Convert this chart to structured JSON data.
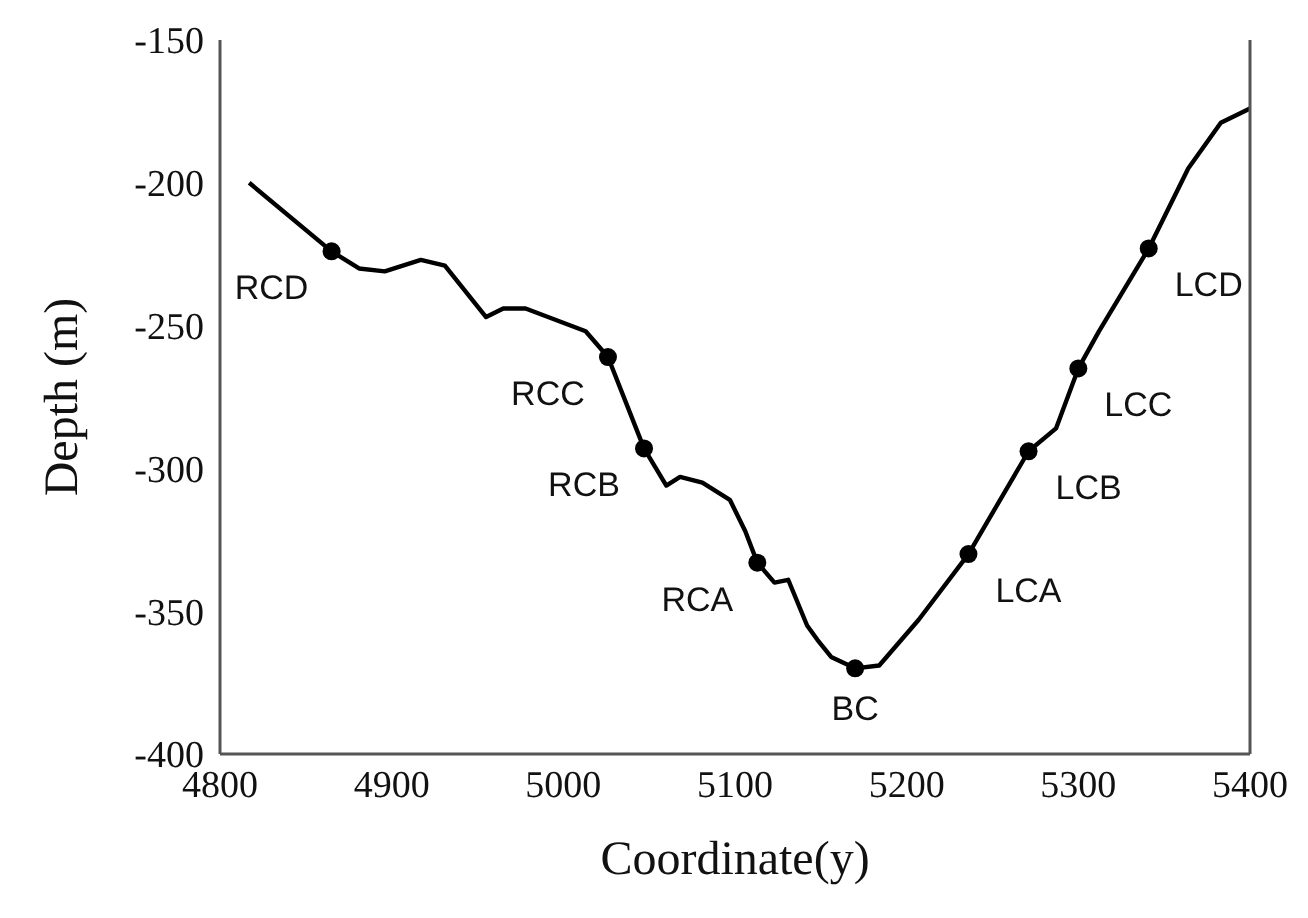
{
  "chart_data": {
    "type": "line",
    "xlabel": "Coordinate(y)",
    "ylabel": "Depth (m)",
    "xlim": [
      4800,
      5400
    ],
    "xticks": [
      4800,
      4900,
      5000,
      5100,
      5200,
      5300,
      5400
    ],
    "ylim": [
      -400,
      -150
    ],
    "yticks": [
      -400,
      -350,
      -300,
      -250,
      -200,
      -150
    ],
    "grid": false,
    "marker": "none",
    "line_style": "solid",
    "series": [
      {
        "color": "#000000",
        "x": [
          4817,
          4865,
          4881,
          4896,
          4917,
          4931,
          4955,
          4965,
          4978,
          5013,
          5026,
          5047,
          5060,
          5068,
          5081,
          5097,
          5106,
          5113,
          5123,
          5131,
          5142,
          5148,
          5156,
          5170,
          5184,
          5207,
          5236,
          5271,
          5287,
          5300,
          5312,
          5341,
          5364,
          5383,
          5400
        ],
        "values": [
          -200,
          -224,
          -230,
          -231,
          -227,
          -229,
          -247,
          -244,
          -244,
          -252,
          -261,
          -293,
          -306,
          -303,
          -305,
          -311,
          -322,
          -333,
          -340,
          -339,
          -355,
          -360,
          -366,
          -370,
          -369,
          -353,
          -330,
          -294,
          -286,
          -265,
          -252,
          -223,
          -195,
          -179,
          -174
        ]
      },
      {
        "type": "scatter",
        "color": "#000000",
        "marker": "circle",
        "x": [
          4865,
          5026,
          5047,
          5113,
          5170,
          5236,
          5271,
          5300,
          5341
        ],
        "values": [
          -224,
          -261,
          -293,
          -333,
          -370,
          -330,
          -294,
          -265,
          -223
        ]
      }
    ],
    "annotations": [
      {
        "text": "RCD",
        "x": 4865,
        "y": -224
      },
      {
        "text": "RCC",
        "x": 5026,
        "y": -261
      },
      {
        "text": "RCB",
        "x": 5047,
        "y": -293
      },
      {
        "text": "RCA",
        "x": 5113,
        "y": -333
      },
      {
        "text": "BC",
        "x": 5170,
        "y": -370
      },
      {
        "text": "LCA",
        "x": 5236,
        "y": -330
      },
      {
        "text": "LCB",
        "x": 5271,
        "y": -294
      },
      {
        "text": "LCC",
        "x": 5300,
        "y": -265
      },
      {
        "text": "LCD",
        "x": 5341,
        "y": -223
      }
    ]
  }
}
